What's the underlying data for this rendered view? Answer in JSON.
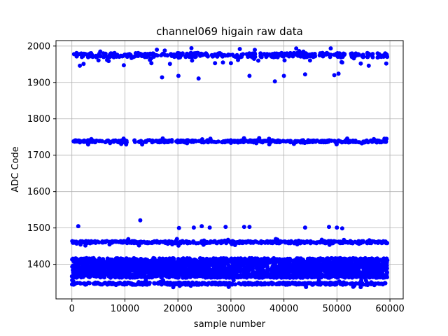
{
  "chart_data": {
    "type": "scatter",
    "title": "channel069 higain raw data",
    "xlabel": "sample number",
    "ylabel": "ADC Code",
    "xlim": [
      -3000,
      62500
    ],
    "ylim": [
      1305,
      2015
    ],
    "xticks": [
      0,
      10000,
      20000,
      30000,
      40000,
      50000,
      60000
    ],
    "xtick_labels": [
      "0",
      "10000",
      "20000",
      "30000",
      "40000",
      "50000",
      "60000"
    ],
    "yticks": [
      1400,
      1500,
      1600,
      1700,
      1800,
      1900,
      2000
    ],
    "ytick_labels": [
      "1400",
      "1500",
      "1600",
      "1700",
      "1800",
      "1900",
      "2000"
    ],
    "grid": true,
    "marker_color": "#0000ff",
    "x_range": [
      0,
      59500
    ],
    "series": [
      {
        "bands": [
          {
            "center": 1975,
            "spread": 6
          },
          {
            "center": 1738,
            "spread": 3
          },
          {
            "center": 1461,
            "spread": 3
          },
          {
            "center": 1390,
            "spread": 27,
            "dense": true
          },
          {
            "center": 1347,
            "spread": 3
          }
        ],
        "outliers": [
          {
            "x": 1200,
            "y": 1505
          },
          {
            "x": 12900,
            "y": 1521
          },
          {
            "x": 20200,
            "y": 1500
          },
          {
            "x": 23000,
            "y": 1501
          },
          {
            "x": 24500,
            "y": 1505
          },
          {
            "x": 26000,
            "y": 1501
          },
          {
            "x": 29000,
            "y": 1503
          },
          {
            "x": 32500,
            "y": 1503
          },
          {
            "x": 33500,
            "y": 1503
          },
          {
            "x": 44000,
            "y": 1501
          },
          {
            "x": 48500,
            "y": 1503
          },
          {
            "x": 50000,
            "y": 1501
          },
          {
            "x": 51000,
            "y": 1499
          },
          {
            "x": 1500,
            "y": 1946
          },
          {
            "x": 2200,
            "y": 1951
          },
          {
            "x": 9800,
            "y": 1947
          },
          {
            "x": 15000,
            "y": 1953
          },
          {
            "x": 17000,
            "y": 1914
          },
          {
            "x": 18500,
            "y": 1951
          },
          {
            "x": 20100,
            "y": 1918
          },
          {
            "x": 23900,
            "y": 1911
          },
          {
            "x": 27000,
            "y": 1953
          },
          {
            "x": 28500,
            "y": 1955
          },
          {
            "x": 30000,
            "y": 1953
          },
          {
            "x": 33500,
            "y": 1918
          },
          {
            "x": 38300,
            "y": 1903
          },
          {
            "x": 40000,
            "y": 1918
          },
          {
            "x": 44000,
            "y": 1922
          },
          {
            "x": 49500,
            "y": 1920
          },
          {
            "x": 50300,
            "y": 1924
          },
          {
            "x": 51000,
            "y": 1955
          },
          {
            "x": 54500,
            "y": 1952
          },
          {
            "x": 56000,
            "y": 1946
          },
          {
            "x": 59300,
            "y": 1952
          }
        ]
      }
    ]
  }
}
